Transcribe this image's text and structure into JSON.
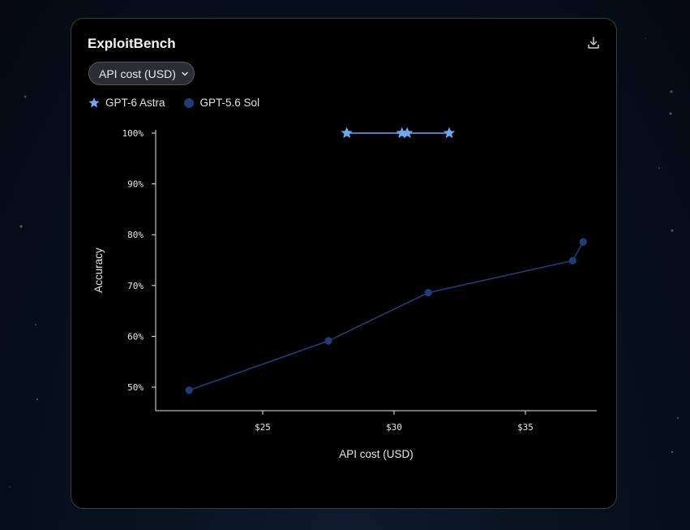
{
  "card": {
    "title": "ExploitBench",
    "metric_selector": "API cost (USD)",
    "download_icon": "download-icon"
  },
  "colors": {
    "astra": "#6aa9f4",
    "sol": "#1e3d7a",
    "card_bg": "#000000",
    "axis": "#e6e7ea"
  },
  "chart_data": {
    "type": "line",
    "xlabel": "API cost (USD)",
    "ylabel": "Accuracy",
    "xlim": [
      21,
      38
    ],
    "ylim": [
      45,
      100
    ],
    "x_ticks": [
      25,
      30,
      35
    ],
    "x_tick_labels": [
      "$25",
      "$30",
      "$35"
    ],
    "y_ticks": [
      50,
      60,
      70,
      80,
      90,
      100
    ],
    "y_tick_labels": [
      "50%",
      "60%",
      "70%",
      "80%",
      "90%",
      "100%"
    ],
    "legend_position": "top-left",
    "series": [
      {
        "name": "GPT-6 Astra",
        "marker": "star",
        "x": [
          28.2,
          30.3,
          30.5,
          32.1
        ],
        "y": [
          100,
          100,
          100,
          100
        ]
      },
      {
        "name": "GPT-5.6 Sol",
        "marker": "circle",
        "x": [
          22.2,
          27.5,
          31.3,
          36.8,
          37.2
        ],
        "y": [
          49.4,
          59.1,
          68.6,
          74.9,
          78.6
        ]
      }
    ]
  }
}
